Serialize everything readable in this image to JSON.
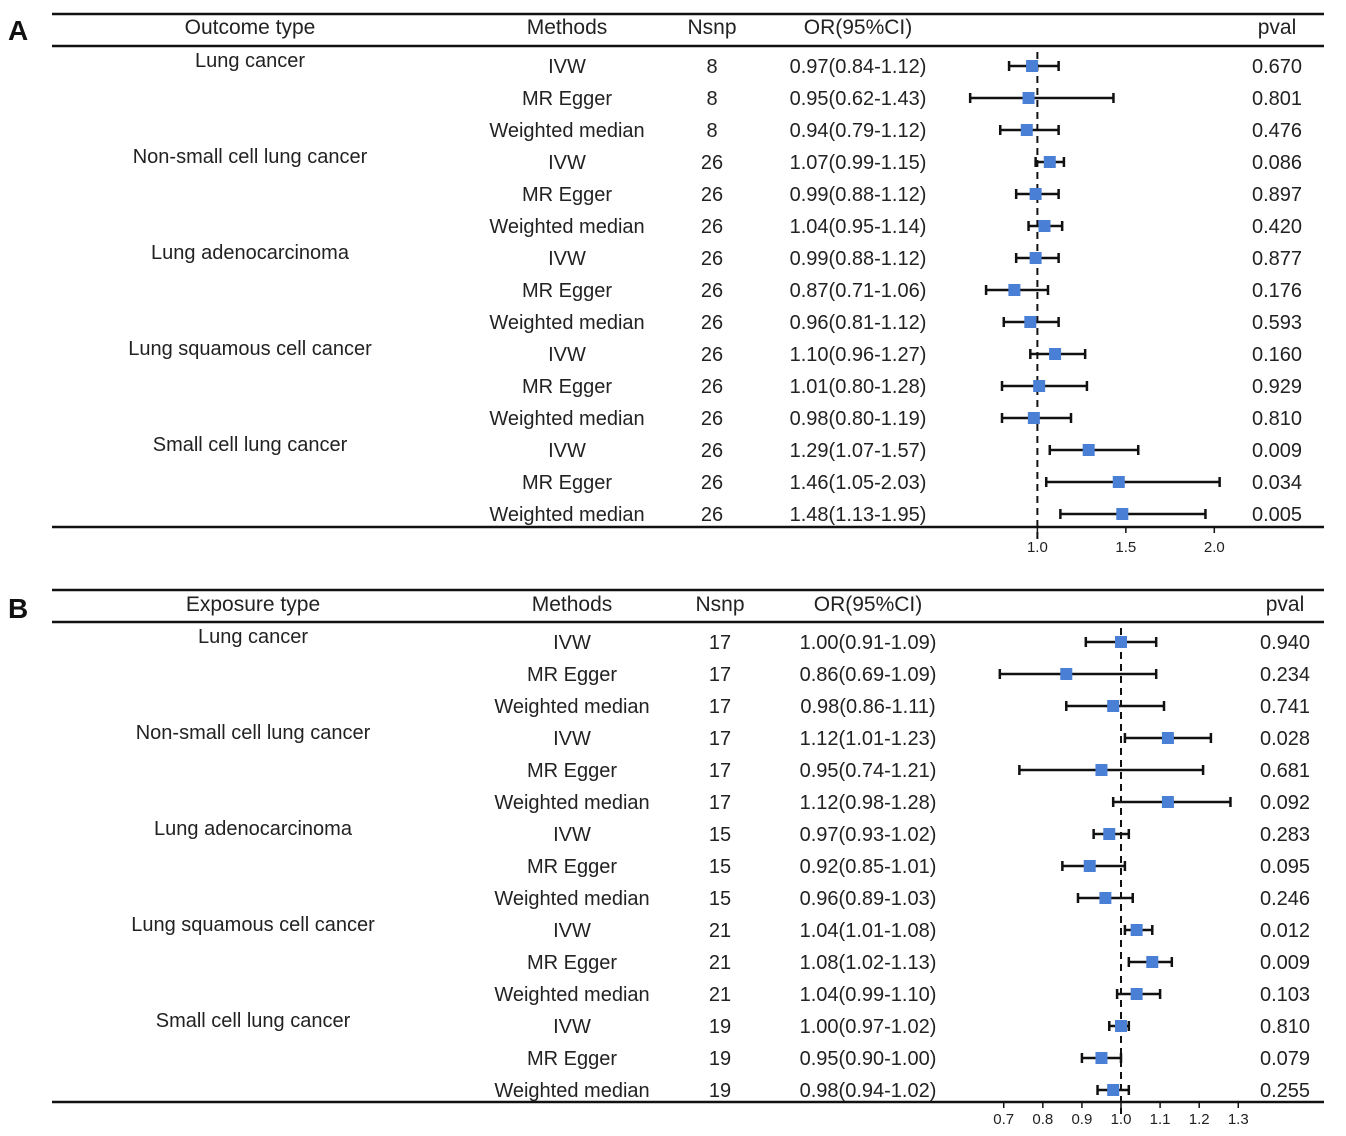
{
  "chart_data": [
    {
      "type": "forest",
      "panel": "A",
      "headers": {
        "group": "Outcome type",
        "method": "Methods",
        "nsnp": "Nsnp",
        "or": "OR(95%CI)",
        "pval": "pval"
      },
      "reference_line": 1.0,
      "axis": {
        "min": 0.8,
        "max": 2.1,
        "ticks": [
          1.0,
          1.5,
          2.0
        ],
        "tick_labels": [
          "1.0",
          "1.5",
          "2.0"
        ]
      },
      "groups": [
        {
          "name": "Lung cancer",
          "rows": [
            {
              "method": "IVW",
              "nsnp": "8",
              "or_text": "0.97(0.84-1.12)",
              "or": 0.97,
              "lo": 0.84,
              "hi": 1.12,
              "pval": "0.670"
            },
            {
              "method": "MR Egger",
              "nsnp": "8",
              "or_text": "0.95(0.62-1.43)",
              "or": 0.95,
              "lo": 0.62,
              "hi": 1.43,
              "pval": "0.801"
            },
            {
              "method": "Weighted median",
              "nsnp": "8",
              "or_text": "0.94(0.79-1.12)",
              "or": 0.94,
              "lo": 0.79,
              "hi": 1.12,
              "pval": "0.476"
            }
          ]
        },
        {
          "name": "Non-small cell lung cancer",
          "rows": [
            {
              "method": "IVW",
              "nsnp": "26",
              "or_text": "1.07(0.99-1.15)",
              "or": 1.07,
              "lo": 0.99,
              "hi": 1.15,
              "pval": "0.086"
            },
            {
              "method": "MR Egger",
              "nsnp": "26",
              "or_text": "0.99(0.88-1.12)",
              "or": 0.99,
              "lo": 0.88,
              "hi": 1.12,
              "pval": "0.897"
            },
            {
              "method": "Weighted median",
              "nsnp": "26",
              "or_text": "1.04(0.95-1.14)",
              "or": 1.04,
              "lo": 0.95,
              "hi": 1.14,
              "pval": "0.420"
            }
          ]
        },
        {
          "name": "Lung adenocarcinoma",
          "rows": [
            {
              "method": "IVW",
              "nsnp": "26",
              "or_text": "0.99(0.88-1.12)",
              "or": 0.99,
              "lo": 0.88,
              "hi": 1.12,
              "pval": "0.877"
            },
            {
              "method": "MR Egger",
              "nsnp": "26",
              "or_text": "0.87(0.71-1.06)",
              "or": 0.87,
              "lo": 0.71,
              "hi": 1.06,
              "pval": "0.176"
            },
            {
              "method": "Weighted median",
              "nsnp": "26",
              "or_text": "0.96(0.81-1.12)",
              "or": 0.96,
              "lo": 0.81,
              "hi": 1.12,
              "pval": "0.593"
            }
          ]
        },
        {
          "name": "Lung squamous cell cancer",
          "rows": [
            {
              "method": "IVW",
              "nsnp": "26",
              "or_text": "1.10(0.96-1.27)",
              "or": 1.1,
              "lo": 0.96,
              "hi": 1.27,
              "pval": "0.160"
            },
            {
              "method": "MR Egger",
              "nsnp": "26",
              "or_text": "1.01(0.80-1.28)",
              "or": 1.01,
              "lo": 0.8,
              "hi": 1.28,
              "pval": "0.929"
            },
            {
              "method": "Weighted median",
              "nsnp": "26",
              "or_text": "0.98(0.80-1.19)",
              "or": 0.98,
              "lo": 0.8,
              "hi": 1.19,
              "pval": "0.810"
            }
          ]
        },
        {
          "name": "Small cell lung cancer",
          "rows": [
            {
              "method": "IVW",
              "nsnp": "26",
              "or_text": "1.29(1.07-1.57)",
              "or": 1.29,
              "lo": 1.07,
              "hi": 1.57,
              "pval": "0.009"
            },
            {
              "method": "MR Egger",
              "nsnp": "26",
              "or_text": "1.46(1.05-2.03)",
              "or": 1.46,
              "lo": 1.05,
              "hi": 2.03,
              "pval": "0.034"
            },
            {
              "method": "Weighted median",
              "nsnp": "26",
              "or_text": "1.48(1.13-1.95)",
              "or": 1.48,
              "lo": 1.13,
              "hi": 1.95,
              "pval": "0.005"
            }
          ]
        }
      ]
    },
    {
      "type": "forest",
      "panel": "B",
      "headers": {
        "group": "Exposure type",
        "method": "Methods",
        "nsnp": "Nsnp",
        "or": "OR(95%CI)",
        "pval": "pval"
      },
      "reference_line": 1.0,
      "axis": {
        "min": 0.67,
        "max": 1.33,
        "ticks": [
          0.7,
          0.8,
          0.9,
          1.0,
          1.1,
          1.2,
          1.3
        ],
        "tick_labels": [
          "0.7",
          "0.8",
          "0.9",
          "1.0",
          "1.1",
          "1.2",
          "1.3"
        ]
      },
      "groups": [
        {
          "name": "Lung cancer",
          "rows": [
            {
              "method": "IVW",
              "nsnp": "17",
              "or_text": "1.00(0.91-1.09)",
              "or": 1.0,
              "lo": 0.91,
              "hi": 1.09,
              "pval": "0.940"
            },
            {
              "method": "MR Egger",
              "nsnp": "17",
              "or_text": "0.86(0.69-1.09)",
              "or": 0.86,
              "lo": 0.69,
              "hi": 1.09,
              "pval": "0.234"
            },
            {
              "method": "Weighted median",
              "nsnp": "17",
              "or_text": "0.98(0.86-1.11)",
              "or": 0.98,
              "lo": 0.86,
              "hi": 1.11,
              "pval": "0.741"
            }
          ]
        },
        {
          "name": "Non-small cell lung cancer",
          "rows": [
            {
              "method": "IVW",
              "nsnp": "17",
              "or_text": "1.12(1.01-1.23)",
              "or": 1.12,
              "lo": 1.01,
              "hi": 1.23,
              "pval": "0.028"
            },
            {
              "method": "MR Egger",
              "nsnp": "17",
              "or_text": "0.95(0.74-1.21)",
              "or": 0.95,
              "lo": 0.74,
              "hi": 1.21,
              "pval": "0.681"
            },
            {
              "method": "Weighted median",
              "nsnp": "17",
              "or_text": "1.12(0.98-1.28)",
              "or": 1.12,
              "lo": 0.98,
              "hi": 1.28,
              "pval": "0.092"
            }
          ]
        },
        {
          "name": "Lung adenocarcinoma",
          "rows": [
            {
              "method": "IVW",
              "nsnp": "15",
              "or_text": "0.97(0.93-1.02)",
              "or": 0.97,
              "lo": 0.93,
              "hi": 1.02,
              "pval": "0.283"
            },
            {
              "method": "MR Egger",
              "nsnp": "15",
              "or_text": "0.92(0.85-1.01)",
              "or": 0.92,
              "lo": 0.85,
              "hi": 1.01,
              "pval": "0.095"
            },
            {
              "method": "Weighted median",
              "nsnp": "15",
              "or_text": "0.96(0.89-1.03)",
              "or": 0.96,
              "lo": 0.89,
              "hi": 1.03,
              "pval": "0.246"
            }
          ]
        },
        {
          "name": "Lung squamous cell cancer",
          "rows": [
            {
              "method": "IVW",
              "nsnp": "21",
              "or_text": "1.04(1.01-1.08)",
              "or": 1.04,
              "lo": 1.01,
              "hi": 1.08,
              "pval": "0.012"
            },
            {
              "method": "MR Egger",
              "nsnp": "21",
              "or_text": "1.08(1.02-1.13)",
              "or": 1.08,
              "lo": 1.02,
              "hi": 1.13,
              "pval": "0.009"
            },
            {
              "method": "Weighted median",
              "nsnp": "21",
              "or_text": "1.04(0.99-1.10)",
              "or": 1.04,
              "lo": 0.99,
              "hi": 1.1,
              "pval": "0.103"
            }
          ]
        },
        {
          "name": "Small cell lung cancer",
          "rows": [
            {
              "method": "IVW",
              "nsnp": "19",
              "or_text": "1.00(0.97-1.02)",
              "or": 1.0,
              "lo": 0.97,
              "hi": 1.02,
              "pval": "0.810"
            },
            {
              "method": "MR Egger",
              "nsnp": "19",
              "or_text": "0.95(0.90-1.00)",
              "or": 0.95,
              "lo": 0.9,
              "hi": 1.0,
              "pval": "0.079"
            },
            {
              "method": "Weighted median",
              "nsnp": "19",
              "or_text": "0.98(0.94-1.02)",
              "or": 0.98,
              "lo": 0.94,
              "hi": 1.02,
              "pval": "0.255"
            }
          ]
        }
      ]
    }
  ],
  "colors": {
    "marker": "#4a7fd6",
    "line": "#111111",
    "text": "#222222"
  }
}
